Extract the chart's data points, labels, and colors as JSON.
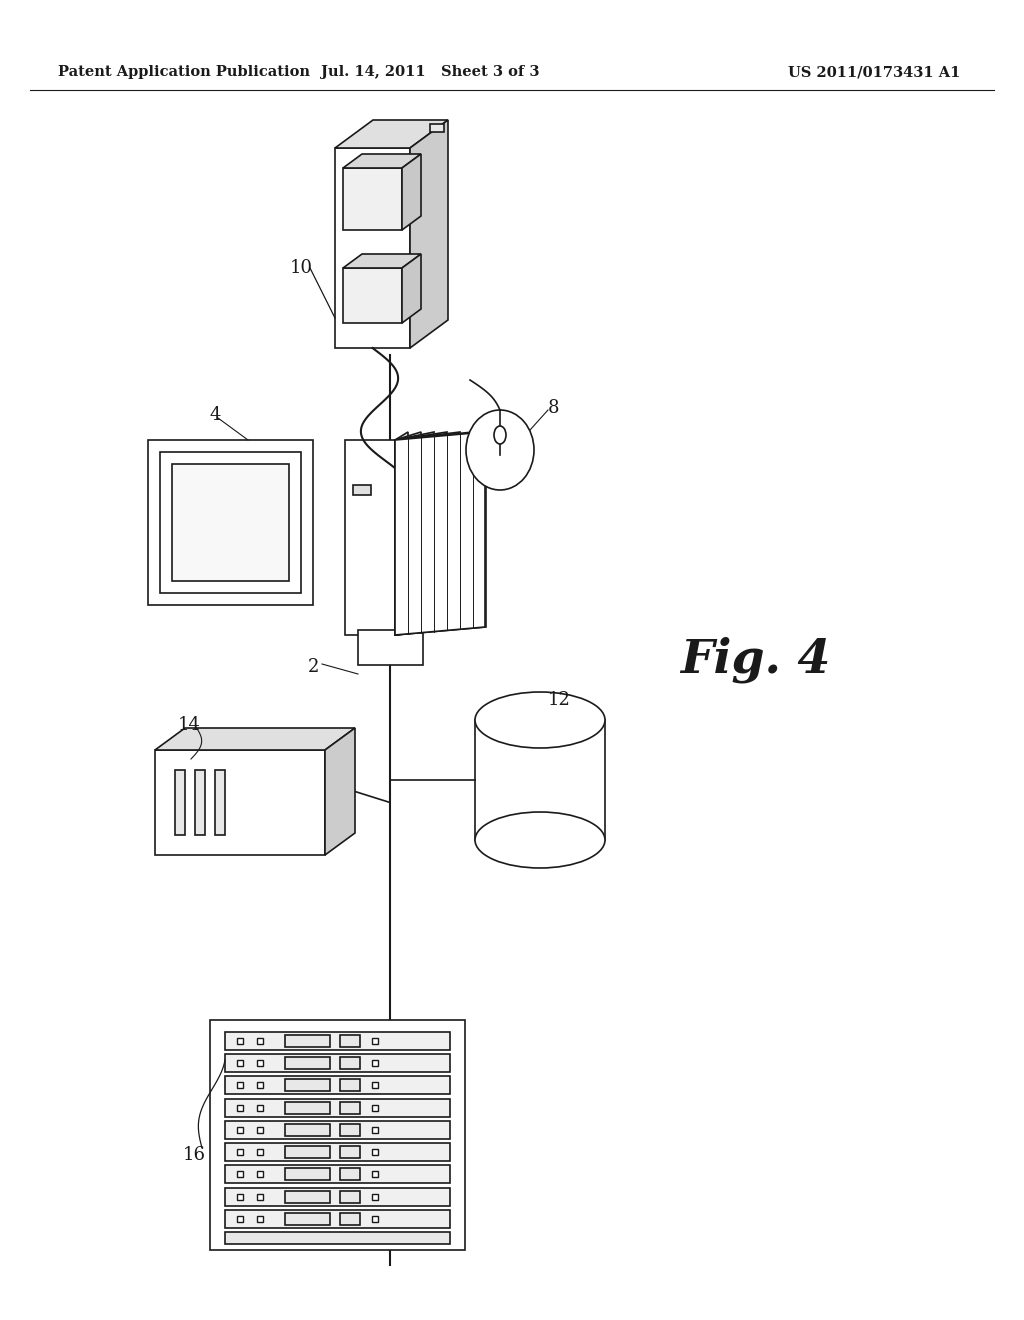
{
  "bg_color": "#ffffff",
  "line_color": "#1a1a1a",
  "header_left": "Patent Application Publication",
  "header_mid": "Jul. 14, 2011   Sheet 3 of 3",
  "header_right": "US 2011/0173431 A1",
  "fig_label": "Fig. 4"
}
